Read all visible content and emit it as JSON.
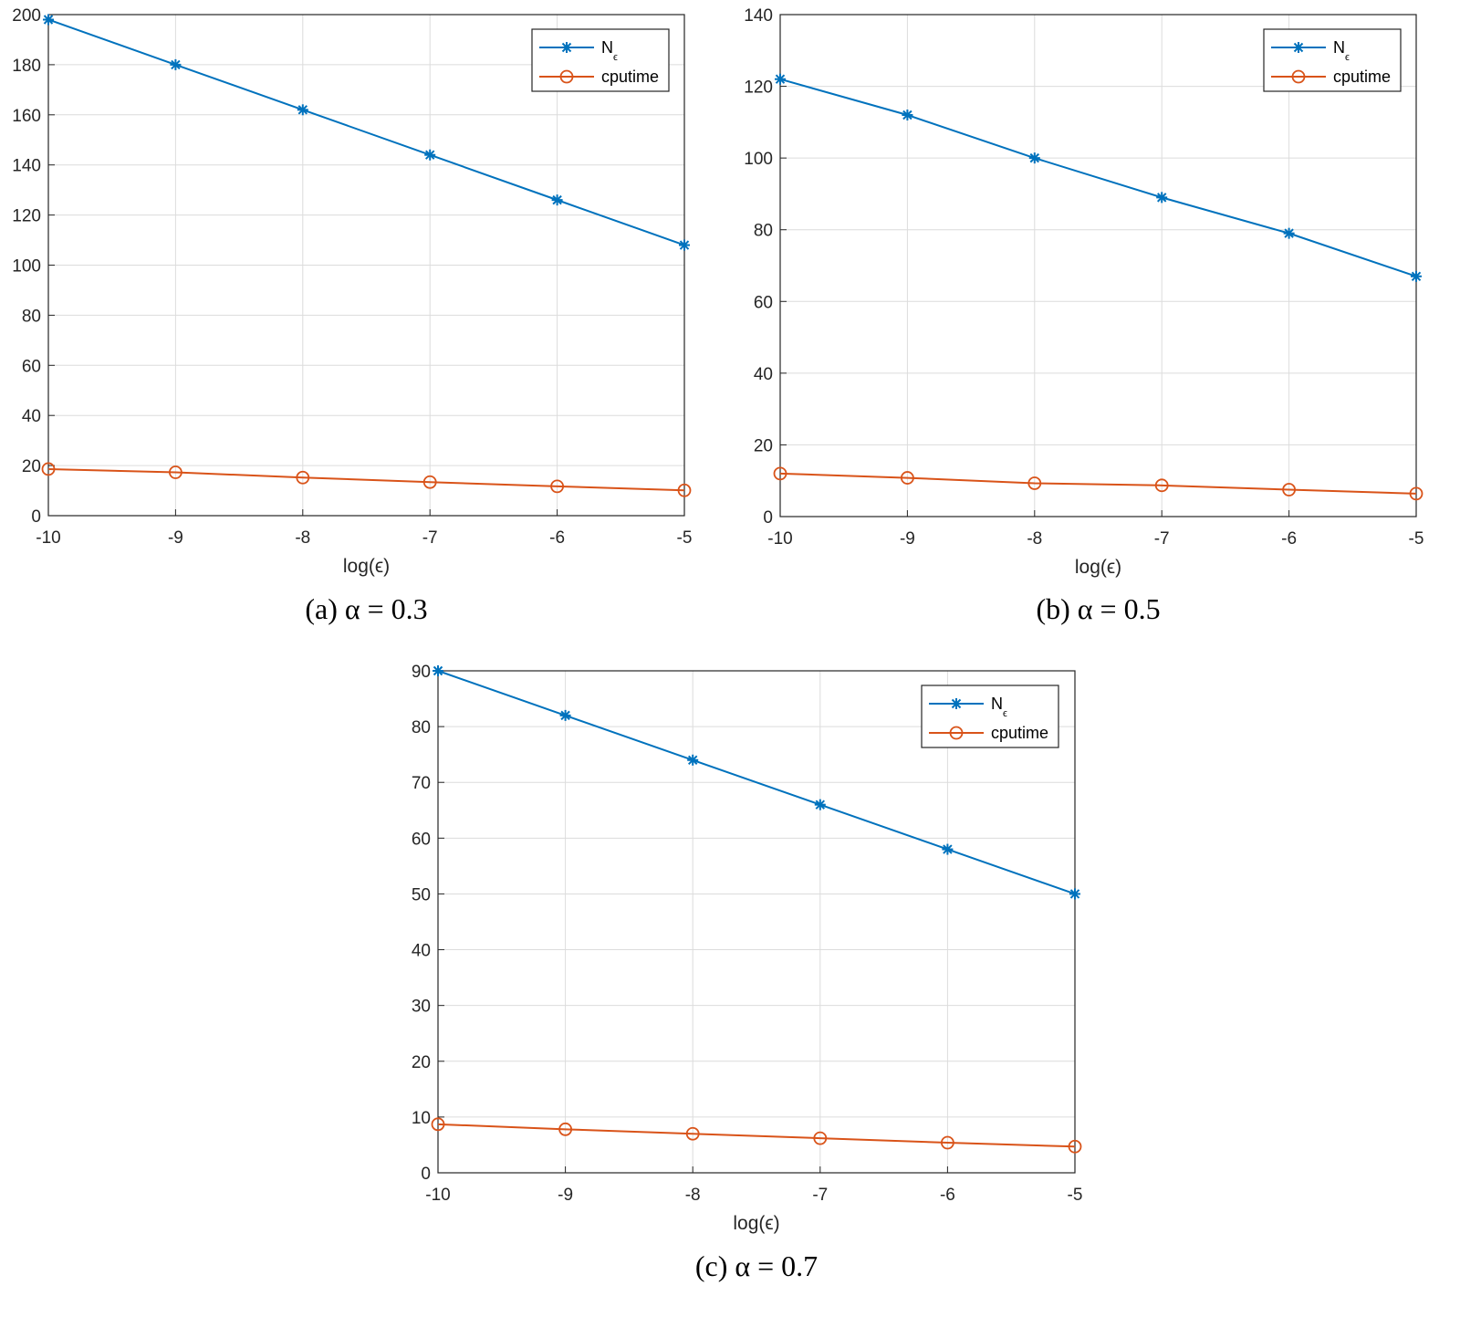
{
  "chart_data": [
    {
      "type": "line",
      "caption": "(a) α = 0.3",
      "xlabel": "log(ϵ)",
      "ylabel": "",
      "xlim": [
        -10,
        -5
      ],
      "ylim": [
        0,
        200
      ],
      "xticks": [
        -10,
        -9,
        -8,
        -7,
        -6,
        -5
      ],
      "yticks": [
        0,
        20,
        40,
        60,
        80,
        100,
        120,
        140,
        160,
        180,
        200
      ],
      "grid": true,
      "legend_position": "top-right",
      "x": [
        -10,
        -9,
        -8,
        -7,
        -6,
        -5
      ],
      "series": [
        {
          "name": "Nϵ",
          "marker": "asterisk",
          "color": "#0072BD",
          "values": [
            198,
            180,
            162,
            144,
            126,
            108
          ]
        },
        {
          "name": "cputime",
          "marker": "circle",
          "color": "#D95319",
          "values": [
            18.6,
            17.3,
            15.2,
            13.4,
            11.7,
            10.1
          ]
        }
      ]
    },
    {
      "type": "line",
      "caption": "(b) α = 0.5",
      "xlabel": "log(ϵ)",
      "ylabel": "",
      "xlim": [
        -10,
        -5
      ],
      "ylim": [
        0,
        140
      ],
      "xticks": [
        -10,
        -9,
        -8,
        -7,
        -6,
        -5
      ],
      "yticks": [
        0,
        20,
        40,
        60,
        80,
        100,
        120,
        140
      ],
      "grid": true,
      "legend_position": "top-right",
      "x": [
        -10,
        -9,
        -8,
        -7,
        -6,
        -5
      ],
      "series": [
        {
          "name": "Nϵ",
          "marker": "asterisk",
          "color": "#0072BD",
          "values": [
            122,
            112,
            100,
            89,
            79,
            67
          ]
        },
        {
          "name": "cputime",
          "marker": "circle",
          "color": "#D95319",
          "values": [
            12.0,
            10.8,
            9.3,
            8.7,
            7.5,
            6.4
          ]
        }
      ]
    },
    {
      "type": "line",
      "caption": "(c) α = 0.7",
      "xlabel": "log(ϵ)",
      "ylabel": "",
      "xlim": [
        -10,
        -5
      ],
      "ylim": [
        0,
        90
      ],
      "xticks": [
        -10,
        -9,
        -8,
        -7,
        -6,
        -5
      ],
      "yticks": [
        0,
        10,
        20,
        30,
        40,
        50,
        60,
        70,
        80,
        90
      ],
      "grid": true,
      "legend_position": "top-right",
      "x": [
        -10,
        -9,
        -8,
        -7,
        -6,
        -5
      ],
      "series": [
        {
          "name": "Nϵ",
          "marker": "asterisk",
          "color": "#0072BD",
          "values": [
            90,
            82,
            74,
            66,
            58,
            50
          ]
        },
        {
          "name": "cputime",
          "marker": "circle",
          "color": "#D95319",
          "values": [
            8.7,
            7.8,
            7.0,
            6.2,
            5.4,
            4.7
          ]
        }
      ]
    }
  ]
}
